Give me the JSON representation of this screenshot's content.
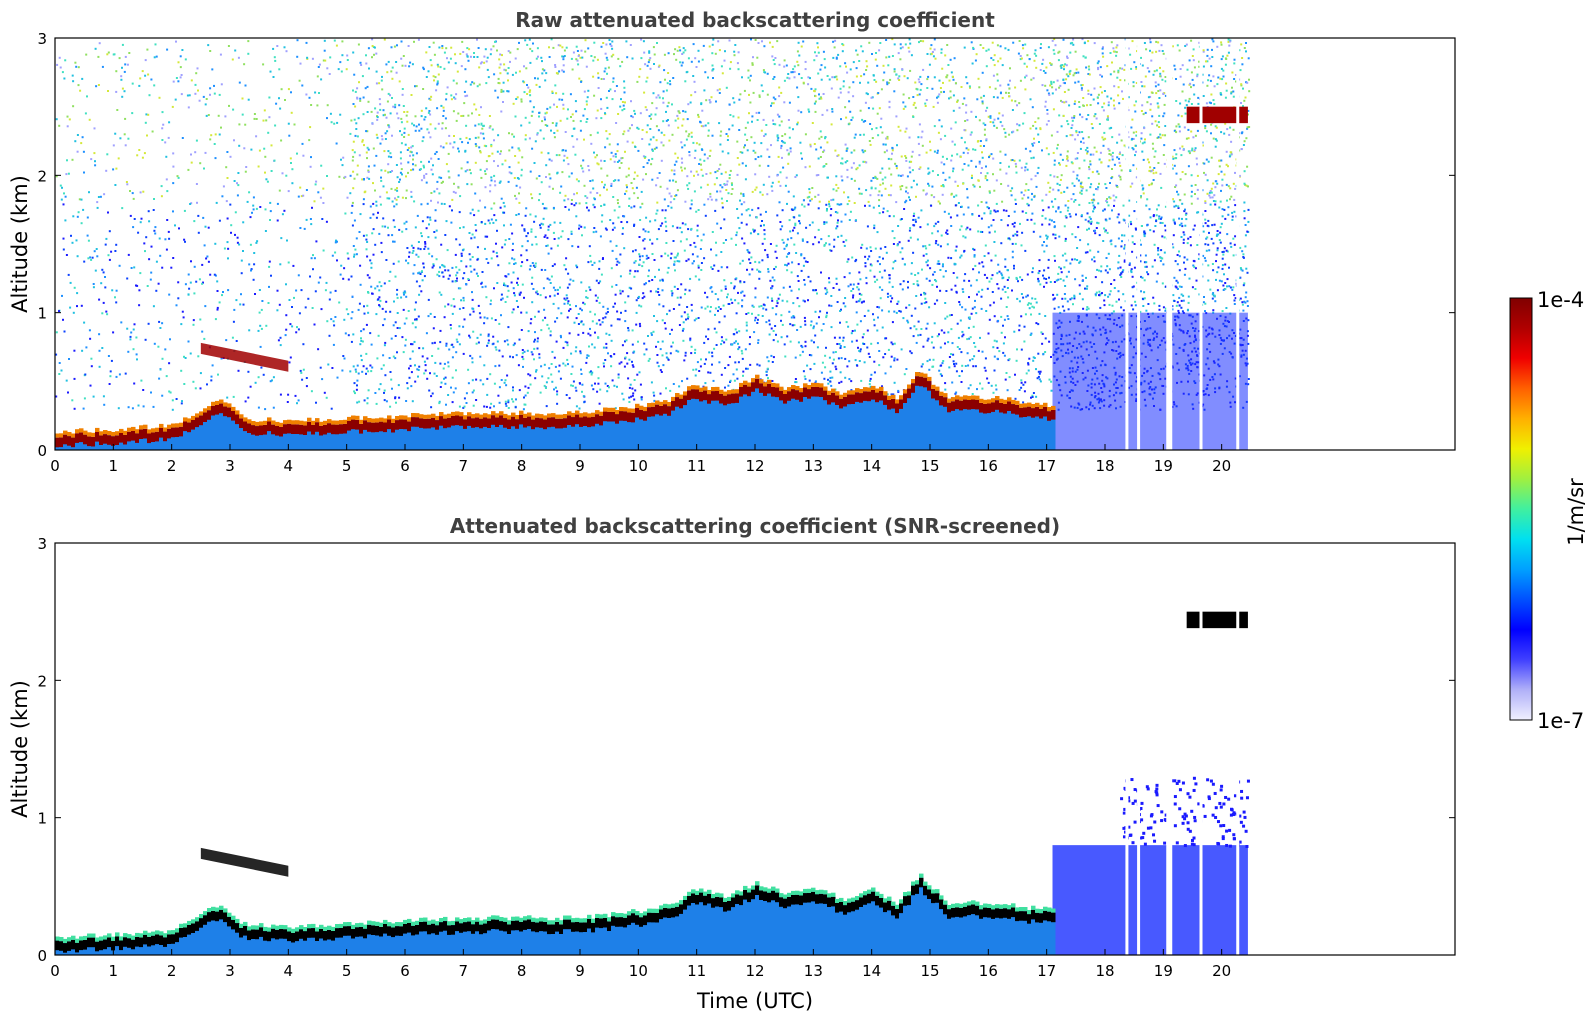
{
  "colors": {
    "aerosol_layer": "#1e6be0",
    "boundary_layer": "#8b0000",
    "black_saturation": "#000000",
    "noise_high": "#d4e83a",
    "noise_low": "#1a1aff"
  },
  "colorbar": {
    "label": "1/m/sr",
    "max_label": "1e-4",
    "min_label": "1e-7",
    "stops": [
      "#f0f0ff",
      "#b0b0f8",
      "#4040ff",
      "#0000ff",
      "#0050ff",
      "#00a0ff",
      "#00e0f0",
      "#40f0a0",
      "#a0f040",
      "#f0f000",
      "#ffb000",
      "#ff6000",
      "#f00000",
      "#b00000",
      "#800000"
    ]
  },
  "chart_data": [
    {
      "type": "heatmap",
      "title": "Raw attenuated backscattering coefficient",
      "xlabel": "",
      "ylabel": "Altitude (km)",
      "xlim": [
        0,
        24
      ],
      "ylim": [
        0,
        3
      ],
      "xticks": [
        "0",
        "1",
        "2",
        "3",
        "4",
        "5",
        "6",
        "7",
        "8",
        "9",
        "10",
        "11",
        "12",
        "13",
        "14",
        "15",
        "16",
        "17",
        "18",
        "19",
        "20"
      ],
      "yticks": [
        "0",
        "1",
        "2",
        "3"
      ],
      "data_end_hour": 20.45,
      "boundary_layer_top_km": {
        "x": [
          0,
          1,
          2,
          2.8,
          3.2,
          4,
          5,
          6,
          7,
          8,
          9,
          9.8,
          10.5,
          10.9,
          11.5,
          12,
          12.5,
          13,
          13.5,
          14,
          14.4,
          14.8,
          15.3,
          16,
          17,
          17.1
        ],
        "y": [
          0.1,
          0.12,
          0.15,
          0.35,
          0.2,
          0.18,
          0.2,
          0.22,
          0.24,
          0.24,
          0.24,
          0.28,
          0.33,
          0.45,
          0.4,
          0.5,
          0.42,
          0.45,
          0.38,
          0.45,
          0.35,
          0.55,
          0.35,
          0.35,
          0.3,
          0.3
        ]
      },
      "elevated_layer": {
        "x_start": 2.5,
        "x_end": 4.0,
        "y_start_km": 0.75,
        "y_end_km": 0.62
      },
      "upper_cloud": {
        "x_start": 19.4,
        "x_end": 20.45,
        "base_km": 2.38,
        "top_km": 2.5
      }
    },
    {
      "type": "heatmap",
      "title": "Attenuated backscattering coefficient (SNR-screened)",
      "xlabel": "Time (UTC)",
      "ylabel": "Altitude (km)",
      "xlim": [
        0,
        24
      ],
      "ylim": [
        0,
        3
      ],
      "xticks": [
        "0",
        "1",
        "2",
        "3",
        "4",
        "5",
        "6",
        "7",
        "8",
        "9",
        "10",
        "11",
        "12",
        "13",
        "14",
        "15",
        "16",
        "17",
        "18",
        "19",
        "20"
      ],
      "yticks": [
        "0",
        "1",
        "2",
        "3"
      ],
      "data_end_hour": 20.45
    }
  ]
}
